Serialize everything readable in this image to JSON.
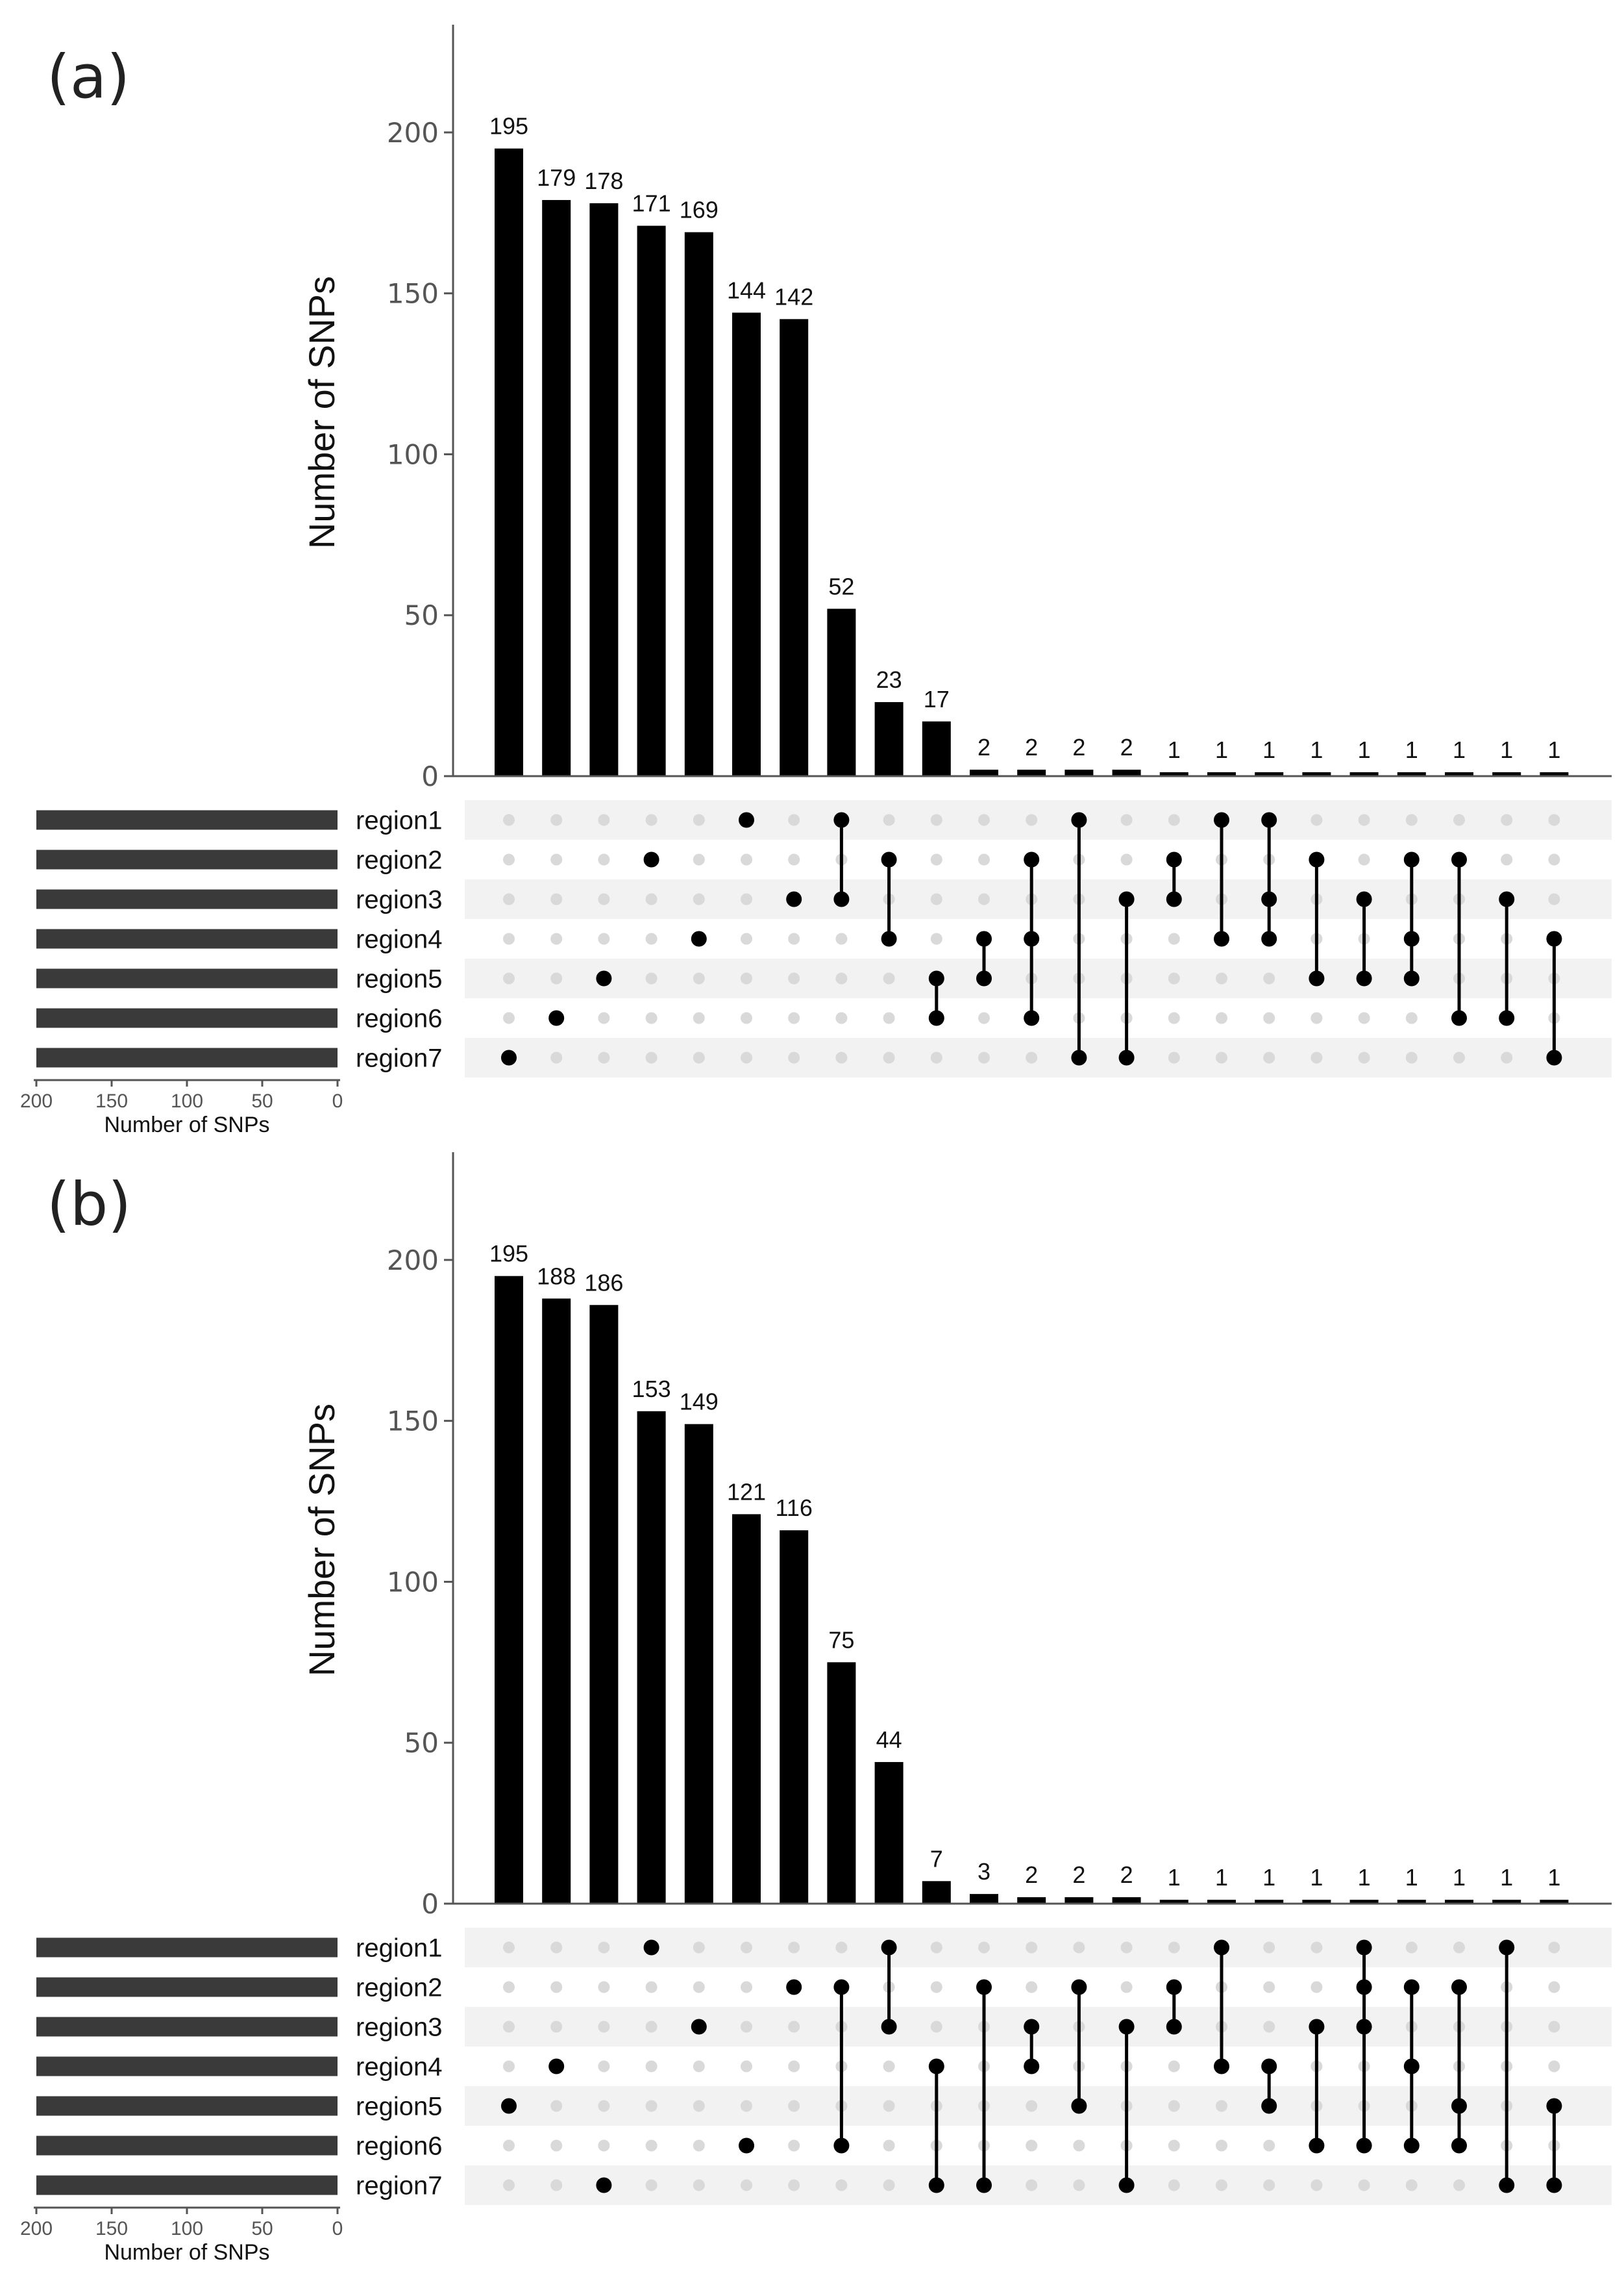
{
  "chart_data": [
    {
      "type": "upset",
      "panel_label": "(a)",
      "ylabel": "Number of SNPs",
      "ylim": [
        0,
        225
      ],
      "yticks": [
        0,
        50,
        100,
        150,
        200
      ],
      "sets": [
        "region1",
        "region2",
        "region3",
        "region4",
        "region5",
        "region6",
        "region7"
      ],
      "set_size_label": "Number of SNPs",
      "set_size_ticks": [
        200,
        150,
        100,
        50,
        0
      ],
      "set_size_values": [
        200,
        200,
        200,
        200,
        200,
        200,
        200
      ],
      "intersections": [
        {
          "value": 195,
          "sets": [
            7
          ]
        },
        {
          "value": 179,
          "sets": [
            6
          ]
        },
        {
          "value": 178,
          "sets": [
            5
          ]
        },
        {
          "value": 171,
          "sets": [
            2
          ]
        },
        {
          "value": 169,
          "sets": [
            4
          ]
        },
        {
          "value": 144,
          "sets": [
            1
          ]
        },
        {
          "value": 142,
          "sets": [
            3
          ]
        },
        {
          "value": 52,
          "sets": [
            1,
            3
          ]
        },
        {
          "value": 23,
          "sets": [
            2,
            4
          ]
        },
        {
          "value": 17,
          "sets": [
            5,
            6
          ]
        },
        {
          "value": 2,
          "sets": [
            4,
            5
          ]
        },
        {
          "value": 2,
          "sets": [
            2,
            4,
            6
          ]
        },
        {
          "value": 2,
          "sets": [
            1,
            7
          ]
        },
        {
          "value": 2,
          "sets": [
            3,
            7
          ]
        },
        {
          "value": 1,
          "sets": [
            2,
            3
          ]
        },
        {
          "value": 1,
          "sets": [
            1,
            4
          ]
        },
        {
          "value": 1,
          "sets": [
            1,
            3,
            4
          ]
        },
        {
          "value": 1,
          "sets": [
            2,
            5
          ]
        },
        {
          "value": 1,
          "sets": [
            3,
            5
          ]
        },
        {
          "value": 1,
          "sets": [
            2,
            4,
            5
          ]
        },
        {
          "value": 1,
          "sets": [
            2,
            6
          ]
        },
        {
          "value": 1,
          "sets": [
            3,
            6
          ]
        },
        {
          "value": 1,
          "sets": [
            4,
            7
          ]
        }
      ]
    },
    {
      "type": "upset",
      "panel_label": "(b)",
      "ylabel": "Number of SNPs",
      "ylim": [
        0,
        225
      ],
      "yticks": [
        0,
        50,
        100,
        150,
        200
      ],
      "sets": [
        "region1",
        "region2",
        "region3",
        "region4",
        "region5",
        "region6",
        "region7"
      ],
      "set_size_label": "Number of SNPs",
      "set_size_ticks": [
        200,
        150,
        100,
        50,
        0
      ],
      "set_size_values": [
        200,
        200,
        200,
        200,
        200,
        200,
        200
      ],
      "intersections": [
        {
          "value": 195,
          "sets": [
            5
          ]
        },
        {
          "value": 188,
          "sets": [
            4
          ]
        },
        {
          "value": 186,
          "sets": [
            7
          ]
        },
        {
          "value": 153,
          "sets": [
            1
          ]
        },
        {
          "value": 149,
          "sets": [
            3
          ]
        },
        {
          "value": 121,
          "sets": [
            6
          ]
        },
        {
          "value": 116,
          "sets": [
            2
          ]
        },
        {
          "value": 75,
          "sets": [
            2,
            6
          ]
        },
        {
          "value": 44,
          "sets": [
            1,
            3
          ]
        },
        {
          "value": 7,
          "sets": [
            4,
            7
          ]
        },
        {
          "value": 3,
          "sets": [
            2,
            7
          ]
        },
        {
          "value": 2,
          "sets": [
            3,
            4
          ]
        },
        {
          "value": 2,
          "sets": [
            2,
            5
          ]
        },
        {
          "value": 2,
          "sets": [
            3,
            7
          ]
        },
        {
          "value": 1,
          "sets": [
            2,
            3
          ]
        },
        {
          "value": 1,
          "sets": [
            1,
            4
          ]
        },
        {
          "value": 1,
          "sets": [
            4,
            5
          ]
        },
        {
          "value": 1,
          "sets": [
            3,
            6
          ]
        },
        {
          "value": 1,
          "sets": [
            1,
            2,
            3,
            6
          ]
        },
        {
          "value": 1,
          "sets": [
            2,
            4,
            6
          ]
        },
        {
          "value": 1,
          "sets": [
            2,
            5,
            6
          ]
        },
        {
          "value": 1,
          "sets": [
            1,
            7
          ]
        },
        {
          "value": 1,
          "sets": [
            5,
            7
          ]
        }
      ]
    }
  ]
}
